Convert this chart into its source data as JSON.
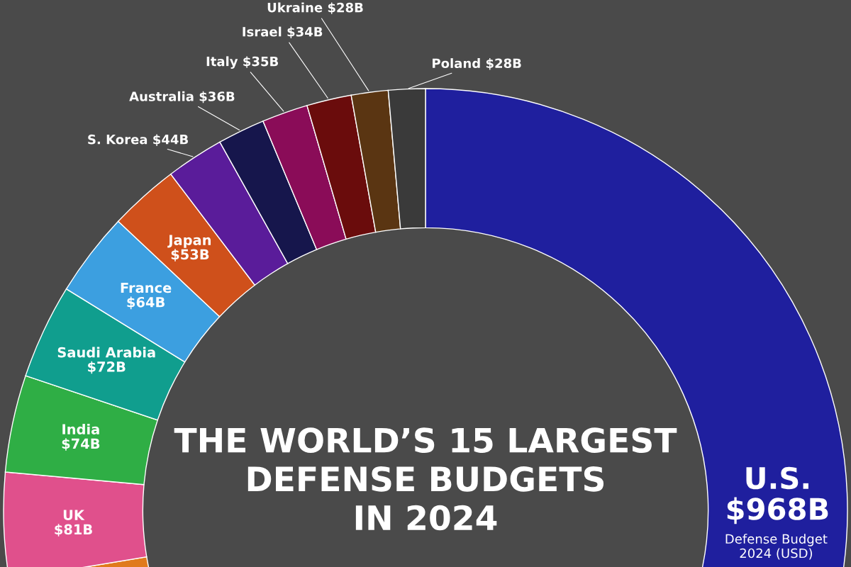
{
  "chart_data": {
    "type": "donut",
    "title": "THE WORLD’S 15 LARGEST\nDEFENSE BUDGETS\nIN 2024",
    "annotations": [
      "Defense Budget\n2024 (USD)"
    ],
    "categories": [
      "U.S.",
      null,
      "UK",
      "India",
      "Saudi Arabia",
      "France",
      "Japan",
      "S. Korea",
      "Australia",
      "Italy",
      "Israel",
      "Ukraine",
      "Poland"
    ],
    "values": [
      968,
      470,
      81,
      74,
      72,
      64,
      53,
      44,
      36,
      35,
      34,
      28,
      28
    ],
    "value_labels": [
      "$968B",
      null,
      "$81B",
      "$74B",
      "$72B",
      "$64B",
      "$53B",
      "$44B",
      "$36B",
      "$35B",
      "$34B",
      "$28B",
      "$28B"
    ],
    "colors": [
      "#1f1f9e",
      "#e07a1c",
      "#e0508c",
      "#2fae45",
      "#109e8e",
      "#3c9fe0",
      "#cf501b",
      "#5a1c9a",
      "#16164c",
      "#8a0c58",
      "#6a0c0c",
      "#5a3512",
      "#3a3a3a"
    ]
  }
}
